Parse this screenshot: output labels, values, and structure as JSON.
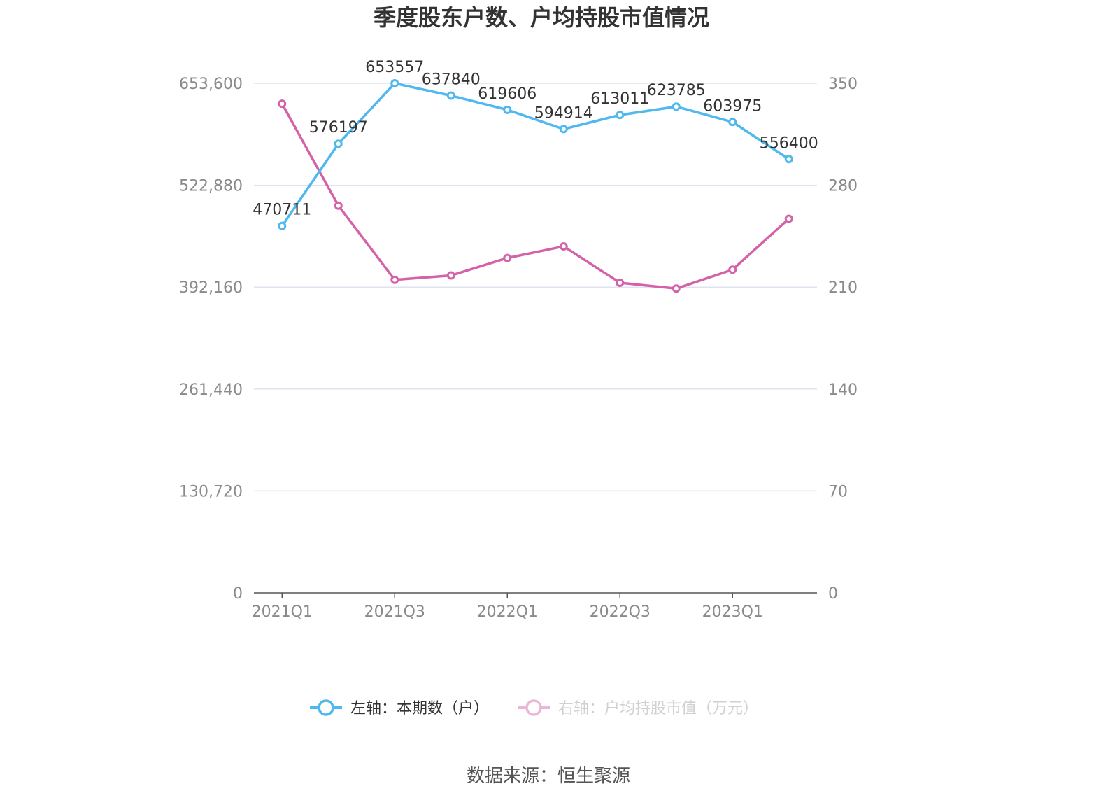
{
  "chart_data": {
    "type": "line",
    "title": "季度股东户数、户均持股市值情况",
    "categories": [
      "2021Q1",
      "2021Q2",
      "2021Q3",
      "2021Q4",
      "2022Q1",
      "2022Q2",
      "2022Q3",
      "2022Q4",
      "2023Q1",
      "2023Q2"
    ],
    "x_tick_labels": [
      "2021Q1",
      "2021Q3",
      "2022Q1",
      "2022Q3",
      "2023Q1"
    ],
    "x_tick_label_indices": [
      0,
      2,
      4,
      6,
      8
    ],
    "y_left": {
      "ticks": [
        0,
        130720,
        261440,
        392160,
        522880,
        653600
      ],
      "tick_labels": [
        "0",
        "130,720",
        "261,440",
        "392,160",
        "522,880",
        "653,600"
      ],
      "range": [
        0,
        653600
      ]
    },
    "y_right": {
      "ticks": [
        0,
        70,
        140,
        210,
        280,
        350
      ],
      "tick_labels": [
        "0",
        "70",
        "140",
        "210",
        "280",
        "350"
      ],
      "range": [
        0,
        350
      ]
    },
    "grid": true,
    "legend_position": "bottom",
    "series": [
      {
        "name": "左轴：本期数（户）",
        "axis": "left",
        "color": "#4fb8ee",
        "values": [
          470711,
          576197,
          653557,
          637840,
          619606,
          594914,
          613011,
          623785,
          603975,
          556400
        ],
        "labels": [
          "470711",
          "576197",
          "653557",
          "637840",
          "619606",
          "594914",
          "613011",
          "623785",
          "603975",
          "556400"
        ]
      },
      {
        "name": "右轴：户均持股市值（万元）",
        "axis": "right",
        "color": "#d462a8",
        "values": [
          336,
          266,
          215,
          218,
          230,
          238,
          213,
          209,
          222,
          257
        ]
      }
    ]
  },
  "footer": {
    "source": "数据来源：恒生聚源"
  }
}
